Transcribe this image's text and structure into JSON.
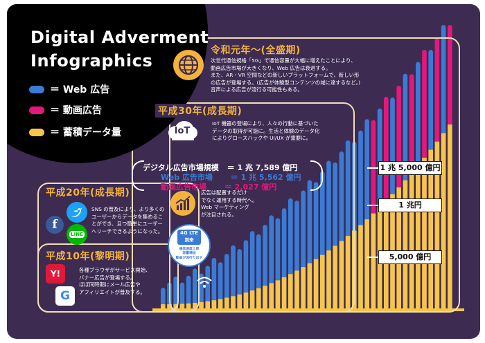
{
  "title_line1": "Digital Adverment",
  "title_line2": "Infographics",
  "legend": [
    {
      "label": "＝ Web 広告",
      "color": "#3a7bd5"
    },
    {
      "label": "＝ 動画広告",
      "color": "#e5177a"
    },
    {
      "label": "＝ 蓄積データ量",
      "color": "#f6c54a"
    }
  ],
  "eras": {
    "reiwa": {
      "title": "令和元年〜(全盛期)",
      "text": [
        "次世代通信規格「5G」で通信容量が大幅に増えたことにより、",
        "動画広告市場が大きくなり、Web 広告は衰退する。",
        "また、AR・VR 空間などの新しいプラットフォームで、新しい形",
        "の広告が登場する。(広告が体験型コンテンツの域に達するなど。)",
        "音声による広告が流行る可能性もある。"
      ]
    },
    "h30": {
      "title": "平成30年(成長期)",
      "text": [
        "IoT 機器の登場により、人々の行動に基づいた",
        "データの取得が可能に。生活と体験のデータ化",
        "によりグロースハックや UI/UX が重要に。"
      ],
      "market": [
        {
          "label": "デジタル広告市場規模",
          "value": "＝ 1 兆 7,589 億円"
        },
        {
          "label": "Web 広告市場",
          "value": "＝ 1 兆 5,562 億円"
        },
        {
          "label": "動画広告市場",
          "value": "＝ 2,027 億円"
        }
      ],
      "side_text": [
        "広告は配置するだけ",
        "でなく運用する時代へ。",
        "Web マーケティング",
        "が注目される。"
      ]
    },
    "h20": {
      "title": "平成20年(成長期)",
      "text": [
        "SNS の普及により、より多くの",
        "ユーザーからデータを集めるこ",
        "とができ、且つ簡単にユーザー",
        "へリーチできるようになった。"
      ]
    },
    "h10": {
      "title": "平成10年(黎明期)",
      "text": [
        "各種ブラウザがサービス開始、",
        "バナー広告が登場する。",
        "ほぼ同時期にメール広告や",
        "アフィリエイトが普及する。"
      ]
    }
  },
  "icons": {
    "iot": "IoT",
    "lte_top": "4G LTE",
    "lte_mid": "到来",
    "lte_bottom": [
      "通信速度上昇",
      "容量増加",
      "動画が流行り出す"
    ],
    "line": "LINE",
    "yahoo": "Y!",
    "google": "G"
  },
  "callouts": [
    "1 兆 5,000 億円",
    "1 兆円",
    "5,000 億円"
  ],
  "colors": {
    "background": "#3d2b52",
    "web": "#3a7bd5",
    "video": "#e5177a",
    "data": "#f6c54a",
    "frame": "#f0dfb6",
    "heading": "#f3b23c"
  }
}
